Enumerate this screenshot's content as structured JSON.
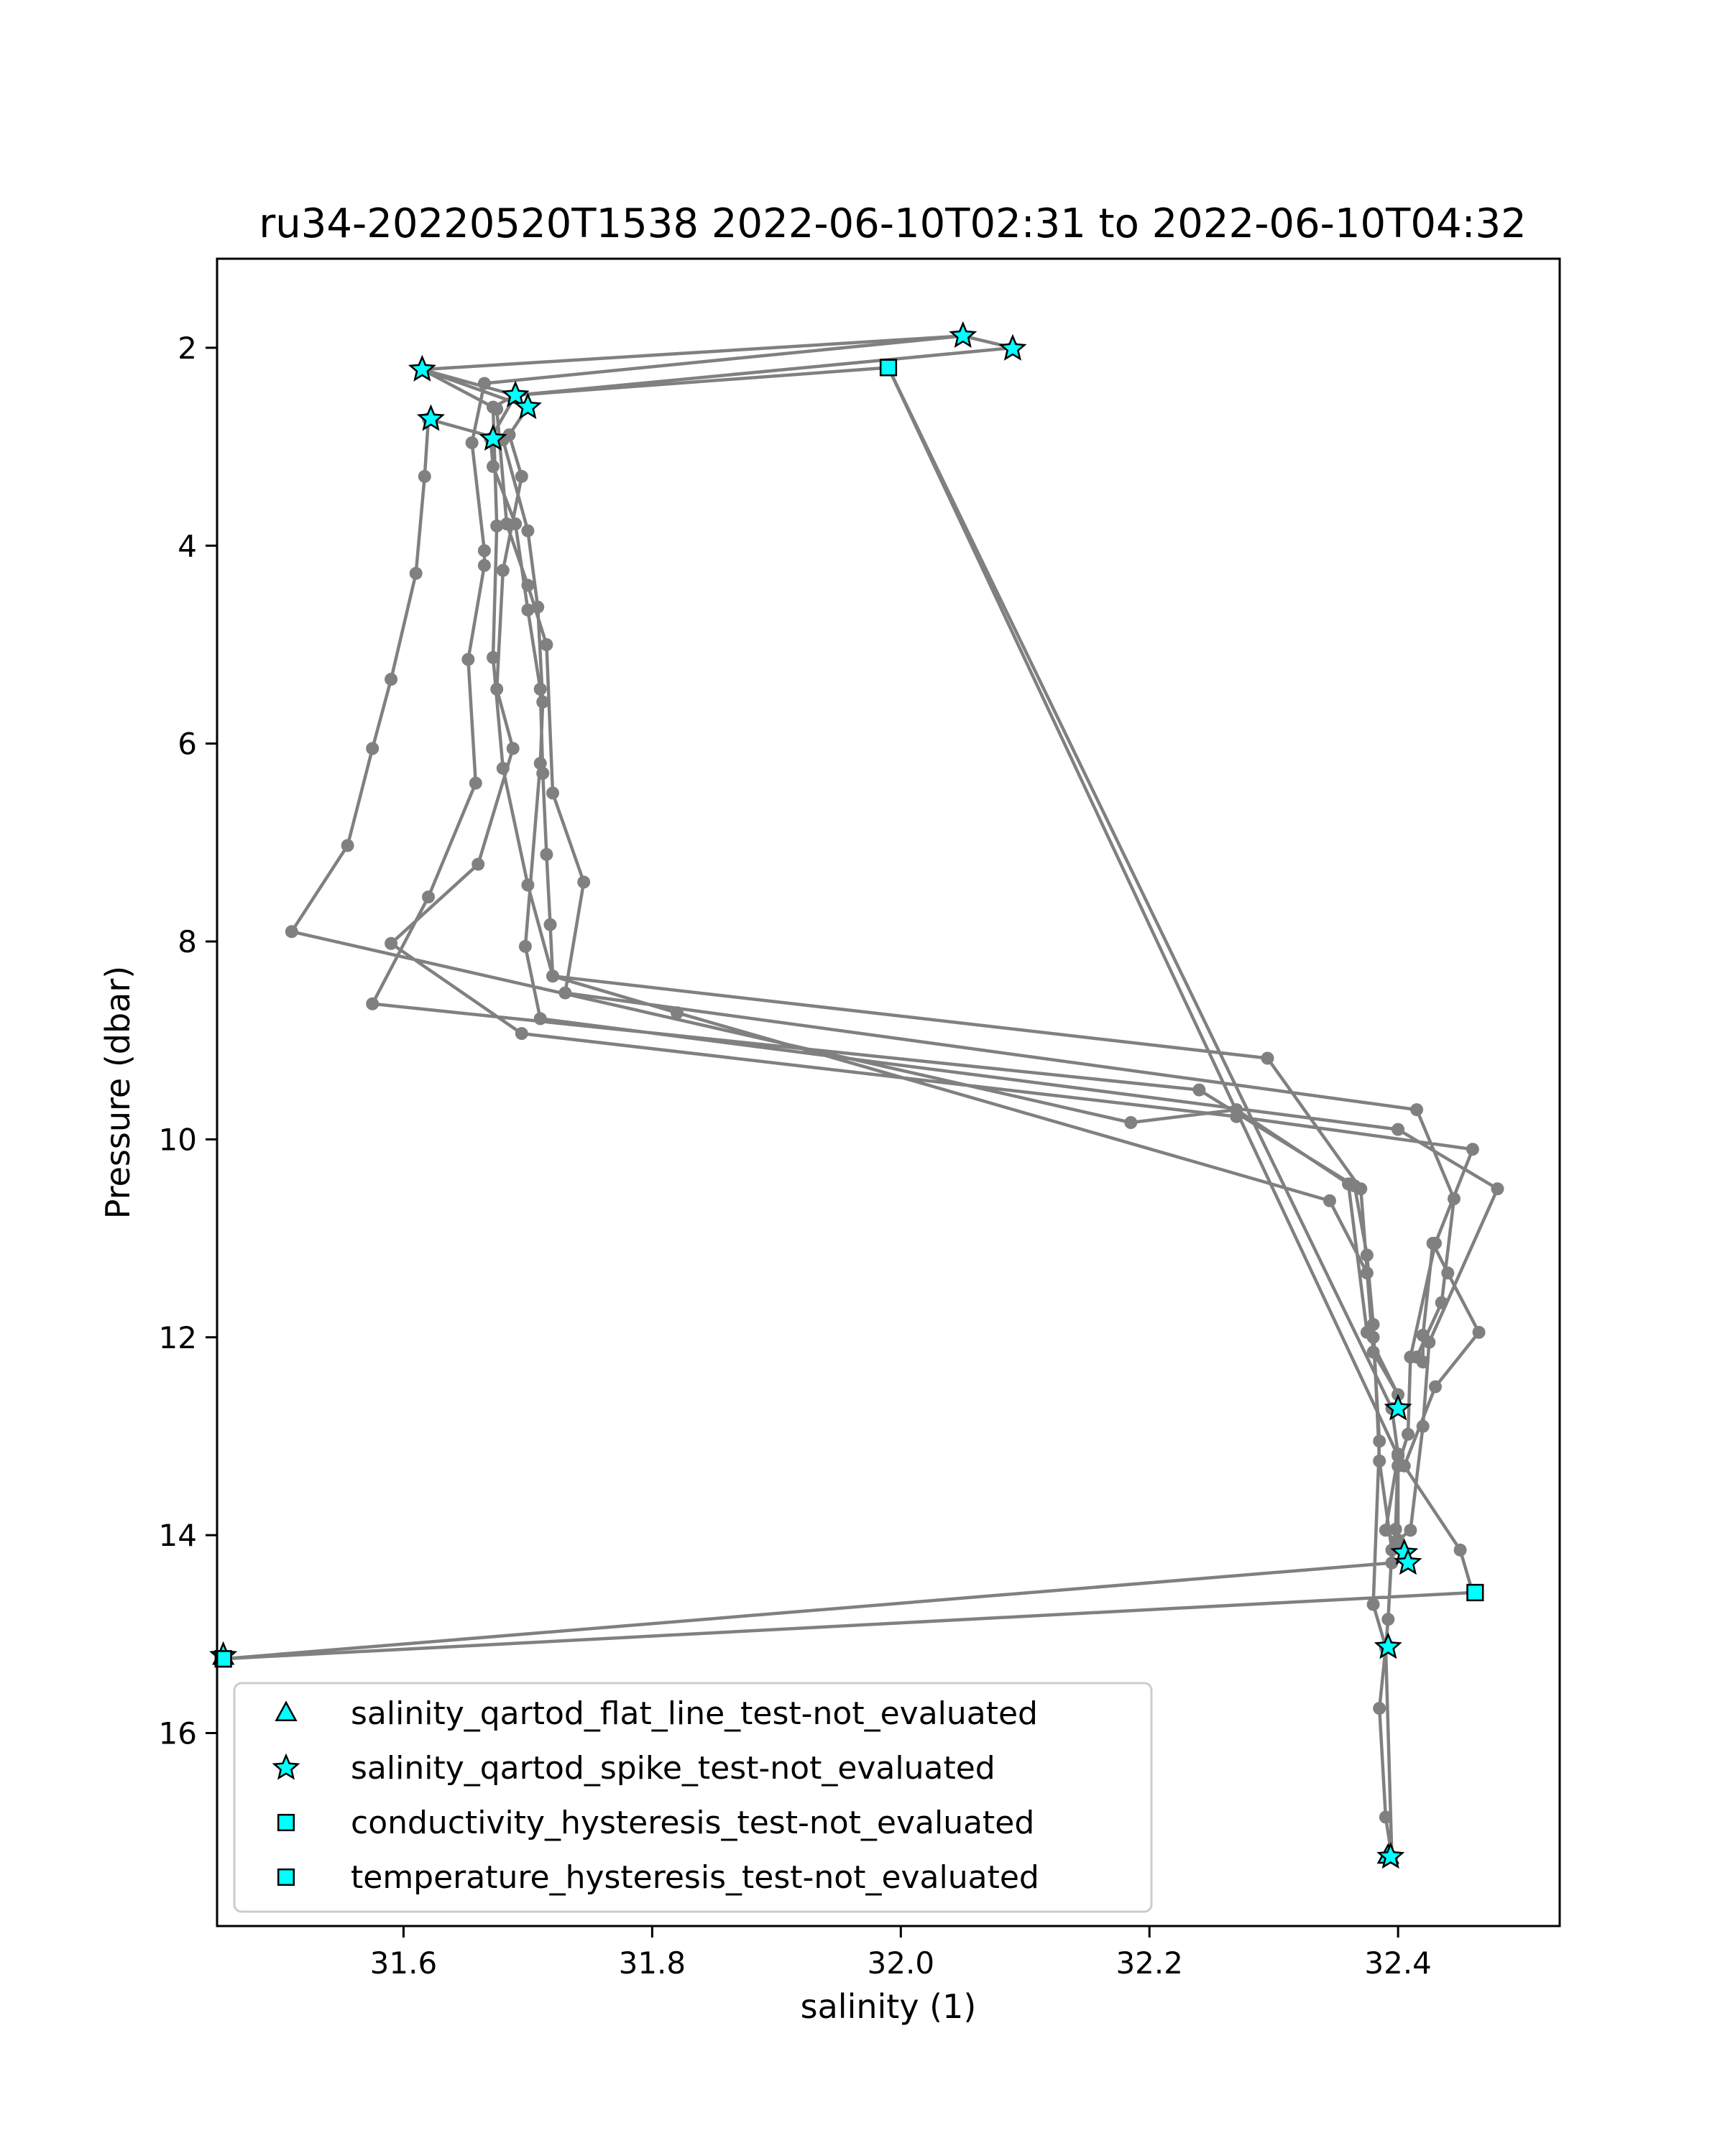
{
  "chart_data": {
    "type": "scatter",
    "title": "ru34-20220520T1538 2022-06-10T02:31 to 2022-06-10T04:32",
    "xlabel": "salinity (1)",
    "ylabel": "Pressure (dbar)",
    "xlim": [
      31.45,
      32.53
    ],
    "ylim": [
      17.95,
      1.1
    ],
    "y_inverted": true,
    "xticks": [
      31.6,
      31.8,
      32.0,
      32.2,
      32.4
    ],
    "yticks": [
      2,
      4,
      6,
      8,
      10,
      12,
      14,
      16
    ],
    "legend_position": "lower left",
    "colors": {
      "profile_line": "#808080",
      "marker_fill": "#00ffff",
      "marker_edge": "#000000"
    },
    "profile": {
      "name": "",
      "points": [
        [
          32.05,
          1.88
        ],
        [
          31.665,
          2.36
        ],
        [
          31.655,
          2.96
        ],
        [
          31.665,
          4.05
        ],
        [
          31.665,
          4.2
        ],
        [
          31.652,
          5.15
        ],
        [
          31.658,
          6.4
        ],
        [
          31.62,
          7.55
        ],
        [
          31.575,
          8.63
        ],
        [
          32.24,
          9.5
        ],
        [
          32.365,
          10.47
        ],
        [
          32.375,
          11.17
        ],
        [
          32.38,
          11.87
        ],
        [
          32.385,
          13.25
        ],
        [
          32.395,
          14.15
        ],
        [
          32.392,
          14.85
        ],
        [
          32.39,
          15.14
        ],
        [
          32.385,
          15.75
        ],
        [
          32.39,
          16.85
        ],
        [
          32.395,
          17.25
        ],
        [
          32.39,
          15.13
        ],
        [
          32.38,
          14.7
        ],
        [
          32.385,
          13.05
        ],
        [
          32.38,
          12.0
        ],
        [
          32.375,
          11.35
        ],
        [
          32.345,
          10.62
        ],
        [
          31.82,
          8.72
        ],
        [
          31.72,
          8.35
        ],
        [
          31.7,
          7.43
        ],
        [
          31.68,
          6.25
        ],
        [
          31.672,
          5.13
        ],
        [
          31.675,
          3.8
        ],
        [
          31.672,
          2.6
        ],
        [
          31.69,
          2.48
        ],
        [
          31.99,
          2.2
        ],
        [
          32.395,
          12.72
        ],
        [
          32.4,
          13.18
        ],
        [
          32.398,
          13.94
        ],
        [
          32.395,
          14.28
        ],
        [
          31.455,
          15.25
        ],
        [
          32.46,
          14.58
        ],
        [
          32.45,
          14.15
        ],
        [
          32.405,
          13.3
        ],
        [
          32.43,
          12.5
        ],
        [
          32.465,
          11.95
        ],
        [
          32.44,
          11.35
        ],
        [
          32.428,
          11.05
        ],
        [
          32.42,
          11.98
        ],
        [
          32.42,
          12.25
        ],
        [
          32.415,
          12.2
        ],
        [
          32.435,
          11.65
        ],
        [
          32.445,
          10.6
        ],
        [
          32.415,
          9.7
        ],
        [
          31.73,
          8.52
        ],
        [
          31.745,
          7.4
        ],
        [
          31.72,
          6.5
        ],
        [
          31.715,
          5.0
        ],
        [
          31.7,
          4.4
        ],
        [
          31.683,
          3.78
        ],
        [
          31.675,
          2.62
        ],
        [
          31.615,
          2.22
        ],
        [
          31.7,
          2.6
        ],
        [
          31.685,
          2.88
        ],
        [
          31.695,
          3.3
        ],
        [
          31.68,
          4.25
        ],
        [
          31.675,
          5.45
        ],
        [
          31.688,
          6.05
        ],
        [
          31.66,
          7.22
        ],
        [
          31.59,
          8.02
        ],
        [
          31.695,
          8.93
        ],
        [
          32.27,
          9.77
        ],
        [
          32.46,
          10.1
        ],
        [
          32.43,
          11.05
        ],
        [
          32.41,
          12.2
        ],
        [
          32.408,
          12.98
        ],
        [
          32.4,
          13.3
        ],
        [
          32.4,
          14.05
        ],
        [
          32.41,
          13.95
        ],
        [
          32.42,
          12.9
        ],
        [
          32.425,
          12.05
        ],
        [
          32.48,
          10.5
        ],
        [
          32.4,
          9.9
        ],
        [
          31.71,
          8.78
        ],
        [
          31.698,
          8.05
        ],
        [
          31.71,
          6.2
        ],
        [
          31.712,
          5.58
        ],
        [
          31.708,
          4.62
        ],
        [
          31.7,
          3.85
        ],
        [
          31.68,
          2.93
        ],
        [
          31.62,
          2.72
        ],
        [
          31.617,
          3.3
        ],
        [
          31.61,
          4.28
        ],
        [
          31.59,
          5.35
        ],
        [
          31.575,
          6.05
        ],
        [
          31.555,
          7.03
        ],
        [
          31.51,
          7.9
        ],
        [
          32.185,
          9.83
        ],
        [
          32.27,
          9.7
        ],
        [
          32.36,
          10.45
        ],
        [
          32.375,
          11.95
        ],
        [
          32.4,
          12.58
        ],
        [
          32.38,
          12.15
        ],
        [
          32.37,
          10.5
        ],
        [
          32.295,
          9.18
        ],
        [
          31.72,
          8.35
        ],
        [
          31.718,
          7.83
        ],
        [
          31.715,
          7.12
        ],
        [
          31.712,
          6.3
        ],
        [
          31.71,
          5.45
        ],
        [
          31.7,
          4.65
        ],
        [
          31.69,
          3.78
        ],
        [
          31.672,
          3.2
        ],
        [
          31.67,
          2.92
        ],
        [
          31.69,
          2.48
        ],
        [
          32.09,
          2.0
        ],
        [
          32.05,
          1.88
        ],
        [
          31.615,
          2.22
        ],
        [
          31.69,
          2.48
        ],
        [
          31.99,
          2.2
        ],
        [
          32.4,
          13.2
        ],
        [
          32.39,
          13.95
        ],
        [
          32.405,
          14.18
        ]
      ]
    },
    "series": [
      {
        "name": "salinity_qartod_flat_line_test-not_evaluated",
        "marker": "triangle",
        "points": [
          [
            31.455,
            15.23
          ],
          [
            32.392,
            17.24
          ]
        ]
      },
      {
        "name": "salinity_qartod_spike_test-not_evaluated",
        "marker": "star",
        "points": [
          [
            32.05,
            1.88
          ],
          [
            32.09,
            2.01
          ],
          [
            31.615,
            2.22
          ],
          [
            31.69,
            2.48
          ],
          [
            31.7,
            2.6
          ],
          [
            31.622,
            2.72
          ],
          [
            31.672,
            2.92
          ],
          [
            32.4,
            12.72
          ],
          [
            32.405,
            14.18
          ],
          [
            32.408,
            14.28
          ],
          [
            32.392,
            15.13
          ],
          [
            32.394,
            17.25
          ],
          [
            31.455,
            15.22
          ]
        ]
      },
      {
        "name": "conductivity_hysteresis_test-not_evaluated",
        "marker": "square",
        "points": [
          [
            31.99,
            2.2
          ],
          [
            32.462,
            14.58
          ],
          [
            31.455,
            15.25
          ]
        ]
      },
      {
        "name": "temperature_hysteresis_test-not_evaluated",
        "marker": "square",
        "points": [
          [
            31.99,
            2.2
          ],
          [
            32.462,
            14.58
          ],
          [
            31.455,
            15.25
          ]
        ]
      }
    ]
  }
}
